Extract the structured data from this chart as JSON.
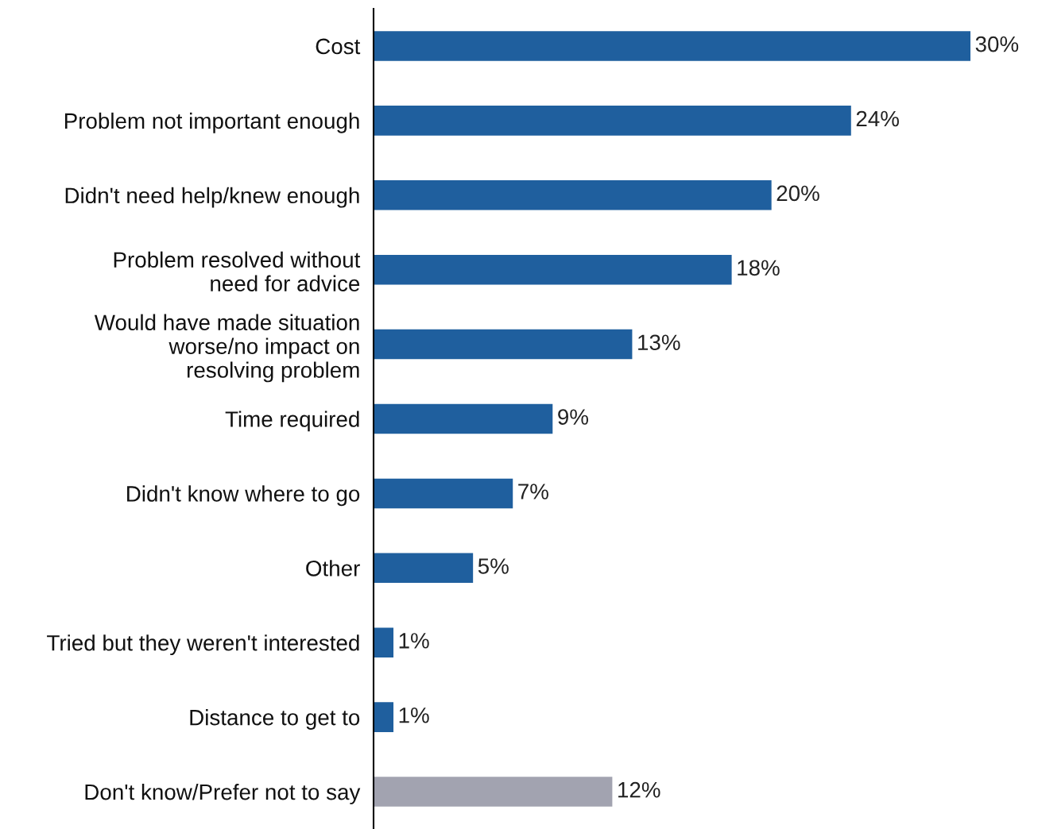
{
  "chart_data": {
    "type": "bar",
    "orientation": "horizontal",
    "categories": [
      "Cost",
      "Problem not important enough",
      "Didn't need help/knew enough",
      "Problem resolved without\nneed for advice",
      "Would have made situation\nworse/no impact on\nresolving problem",
      "Time required",
      "Didn't know where to go",
      "Other",
      "Tried but they weren't interested",
      "Distance to get to",
      "Don't know/Prefer not to say"
    ],
    "values": [
      30,
      24,
      20,
      18,
      13,
      9,
      7,
      5,
      1,
      1,
      12
    ],
    "colors": [
      "#1f5f9e",
      "#1f5f9e",
      "#1f5f9e",
      "#1f5f9e",
      "#1f5f9e",
      "#1f5f9e",
      "#1f5f9e",
      "#1f5f9e",
      "#1f5f9e",
      "#1f5f9e",
      "#a2a3b0"
    ],
    "value_labels": [
      "30%",
      "24%",
      "20%",
      "18%",
      "13%",
      "9%",
      "7%",
      "5%",
      "1%",
      "1%",
      "12%"
    ],
    "grid": false,
    "legend": false
  }
}
